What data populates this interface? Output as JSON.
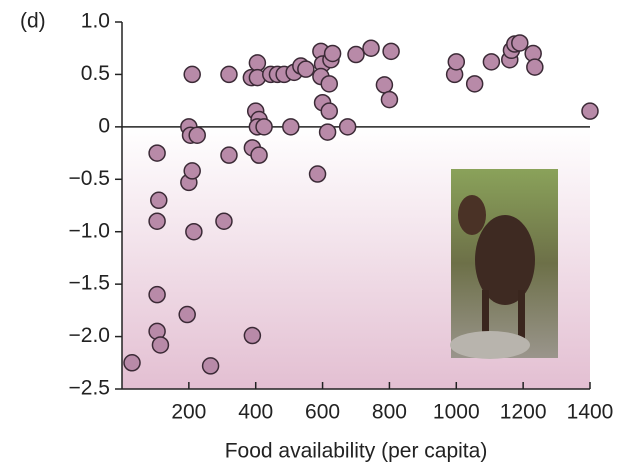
{
  "chart_data": {
    "type": "scatter",
    "panel_label": "(d)",
    "x_label": "Food availability (per capita)",
    "color": "#b88aa8",
    "edge_color": "#3b2a36",
    "xlim": [
      0,
      1400
    ],
    "xticks": [
      200,
      400,
      600,
      800,
      1000,
      1200,
      1400
    ],
    "ylim": [
      -2.5,
      1.0
    ],
    "yticks": [
      {
        "value": 1.0,
        "label": "1.0"
      },
      0.5,
      0,
      {
        "value": -0.5,
        "label": "−0.5"
      },
      {
        "value": -1.0,
        "label": "−1.0"
      },
      {
        "value": -1.5,
        "label": "−1.5"
      },
      {
        "value": -2.0,
        "label": "−2.0"
      },
      {
        "value": -2.5,
        "label": "−2.5"
      }
    ],
    "x": [
      30,
      105,
      110,
      105,
      105,
      105,
      115,
      210,
      200,
      205,
      225,
      200,
      210,
      215,
      195,
      265,
      305,
      320,
      320,
      390,
      410,
      390,
      387,
      405,
      405,
      400,
      410,
      405,
      425,
      445,
      465,
      485,
      505,
      515,
      535,
      550,
      585,
      595,
      600,
      595,
      600,
      620,
      615,
      620,
      625,
      630,
      675,
      700,
      745,
      785,
      800,
      805,
      995,
      1000,
      1055,
      1105,
      1160,
      1165,
      1175,
      1190,
      1230,
      1235,
      1400
    ],
    "values": [
      -2.25,
      -0.25,
      -0.7,
      -0.9,
      -1.6,
      -1.95,
      -2.08,
      0.5,
      0,
      -0.08,
      -0.08,
      -0.53,
      -0.42,
      -1.0,
      -1.79,
      -2.28,
      -0.9,
      -0.27,
      0.5,
      -0.2,
      -0.27,
      -1.99,
      0.47,
      0.61,
      0.47,
      0.15,
      0.07,
      0,
      0,
      0.5,
      0.5,
      0.5,
      0,
      0.52,
      0.58,
      0.55,
      -0.45,
      0.72,
      0.6,
      0.48,
      0.23,
      0.15,
      -0.05,
      0.41,
      0.64,
      0.7,
      0,
      0.69,
      0.75,
      0.4,
      0.26,
      0.72,
      0.5,
      0.62,
      0.41,
      0.62,
      0.64,
      0.73,
      0.79,
      0.8,
      0.7,
      0.57,
      0.15
    ]
  }
}
